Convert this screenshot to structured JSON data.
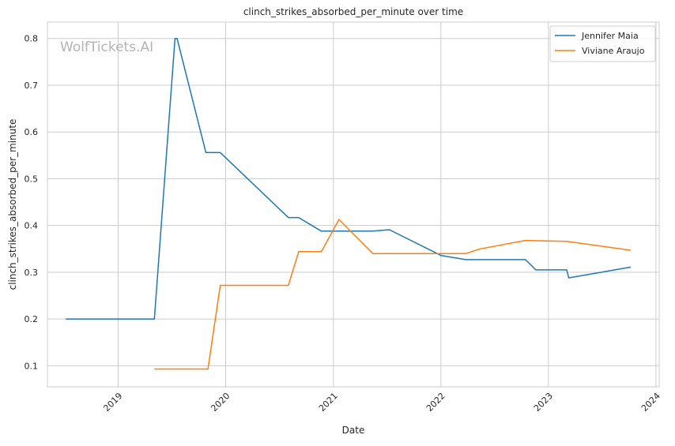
{
  "watermark": "WolfTickets.AI",
  "chart_data": {
    "type": "line",
    "title": "clinch_strikes_absorbed_per_minute over time",
    "xlabel": "Date",
    "ylabel": "clinch_strikes_absorbed_per_minute",
    "xlim": [
      "2018-05-06",
      "2024-01-12"
    ],
    "ylim": [
      0.055,
      0.835
    ],
    "x_ticks": [
      "2019",
      "2020",
      "2021",
      "2022",
      "2023",
      "2024"
    ],
    "x_tick_dates": [
      "2019-01-01",
      "2020-01-01",
      "2021-01-01",
      "2022-01-01",
      "2023-01-01",
      "2024-01-01"
    ],
    "y_ticks": [
      "0.1",
      "0.2",
      "0.3",
      "0.4",
      "0.5",
      "0.6",
      "0.7",
      "0.8"
    ],
    "y_tick_values": [
      0.1,
      0.2,
      0.3,
      0.4,
      0.5,
      0.6,
      0.7,
      0.8
    ],
    "grid": true,
    "legend_position": "top-right",
    "series": [
      {
        "name": "Jennifer Maia",
        "color": "#1f77b4",
        "points": [
          {
            "x": "2018-07-07",
            "y": 0.2
          },
          {
            "x": "2019-05-04",
            "y": 0.2
          },
          {
            "x": "2019-07-13",
            "y": 0.8
          },
          {
            "x": "2019-07-20",
            "y": 0.8
          },
          {
            "x": "2019-10-26",
            "y": 0.556
          },
          {
            "x": "2019-12-14",
            "y": 0.556
          },
          {
            "x": "2020-08-01",
            "y": 0.417
          },
          {
            "x": "2020-09-05",
            "y": 0.417
          },
          {
            "x": "2020-11-21",
            "y": 0.388
          },
          {
            "x": "2021-05-15",
            "y": 0.388
          },
          {
            "x": "2021-07-10",
            "y": 0.391
          },
          {
            "x": "2022-01-01",
            "y": 0.336
          },
          {
            "x": "2022-03-26",
            "y": 0.327
          },
          {
            "x": "2022-10-15",
            "y": 0.327
          },
          {
            "x": "2022-11-19",
            "y": 0.305
          },
          {
            "x": "2023-03-04",
            "y": 0.305
          },
          {
            "x": "2023-03-11",
            "y": 0.288
          },
          {
            "x": "2023-10-07",
            "y": 0.311
          }
        ]
      },
      {
        "name": "Viviane Araujo",
        "color": "#ff7f0e",
        "points": [
          {
            "x": "2019-05-04",
            "y": 0.093
          },
          {
            "x": "2019-11-02",
            "y": 0.093
          },
          {
            "x": "2019-12-14",
            "y": 0.272
          },
          {
            "x": "2020-08-01",
            "y": 0.272
          },
          {
            "x": "2020-09-05",
            "y": 0.344
          },
          {
            "x": "2020-11-21",
            "y": 0.344
          },
          {
            "x": "2021-01-20",
            "y": 0.413
          },
          {
            "x": "2021-05-15",
            "y": 0.34
          },
          {
            "x": "2022-03-26",
            "y": 0.34
          },
          {
            "x": "2022-05-14",
            "y": 0.35
          },
          {
            "x": "2022-10-15",
            "y": 0.368
          },
          {
            "x": "2023-03-04",
            "y": 0.366
          },
          {
            "x": "2023-10-07",
            "y": 0.347
          }
        ]
      }
    ]
  }
}
